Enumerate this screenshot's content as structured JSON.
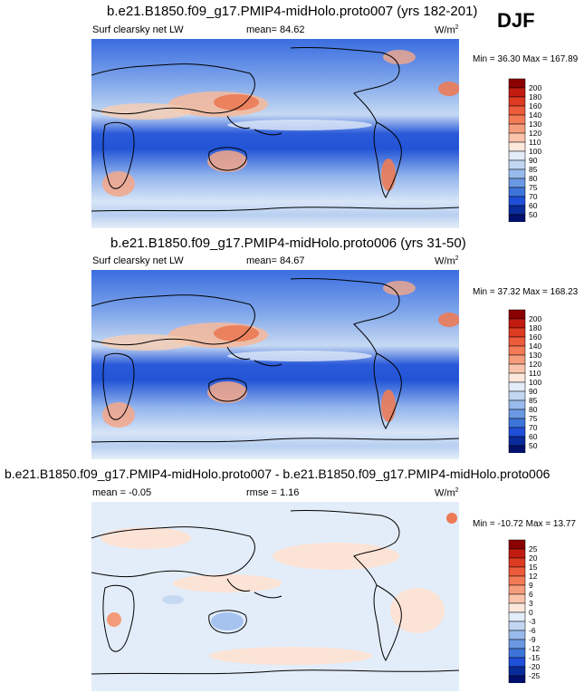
{
  "season": "DJF",
  "colors": {
    "ocean_deep": "#1f4fd8",
    "ocean_mid": "#5d8ae8",
    "ocean_light": "#a9c6f1",
    "pale": "#dde8f7",
    "warm_light": "#f7cdb2",
    "warm_mid": "#ee8a64",
    "warm_high": "#d5341f"
  },
  "chart_data": [
    {
      "type": "heatmap",
      "title": "b.e21.B1850.f09_g17.PMIP4-midHolo.proto007 (yrs 182-201)",
      "variable": "Surf clearsky net LW",
      "mean_label": "mean=",
      "mean": "84.62",
      "units": "W/m",
      "units_sup": "2",
      "minmax_text": "Min = 36.30 Max = 167.89",
      "min": 36.3,
      "max": 167.89,
      "levels": [
        "200",
        "180",
        "160",
        "140",
        "130",
        "120",
        "110",
        "100",
        "90",
        "85",
        "80",
        "75",
        "70",
        "60",
        "50"
      ],
      "level_colors": [
        "#8b0000",
        "#c21b10",
        "#dd3b22",
        "#ec5b3a",
        "#f27b56",
        "#f69d7c",
        "#fac4ac",
        "#fde8dc",
        "#e3edf9",
        "#c2d6f2",
        "#98baec",
        "#6a98e3",
        "#3d74da",
        "#1f4fd8",
        "#0a2b9a",
        "#00106b"
      ]
    },
    {
      "type": "heatmap",
      "title": "b.e21.B1850.f09_g17.PMIP4-midHolo.proto006 (yrs 31-50)",
      "variable": "Surf clearsky net LW",
      "mean_label": "mean=",
      "mean": "84.67",
      "units": "W/m",
      "units_sup": "2",
      "minmax_text": "Min = 37.32 Max = 168.23",
      "min": 37.32,
      "max": 168.23,
      "levels": [
        "200",
        "180",
        "160",
        "140",
        "130",
        "120",
        "110",
        "100",
        "90",
        "85",
        "80",
        "75",
        "70",
        "60",
        "50"
      ],
      "level_colors": [
        "#8b0000",
        "#c21b10",
        "#dd3b22",
        "#ec5b3a",
        "#f27b56",
        "#f69d7c",
        "#fac4ac",
        "#fde8dc",
        "#e3edf9",
        "#c2d6f2",
        "#98baec",
        "#6a98e3",
        "#3d74da",
        "#1f4fd8",
        "#0a2b9a",
        "#00106b"
      ]
    },
    {
      "type": "heatmap",
      "title": "b.e21.B1850.f09_g17.PMIP4-midHolo.proto007 - b.e21.B1850.f09_g17.PMIP4-midHolo.proto006",
      "mean_label": "mean =",
      "mean": "-0.05",
      "rmse_label": "rmse =",
      "rmse": "1.16",
      "units": "W/m",
      "units_sup": "2",
      "minmax_text": "Min = -10.72 Max = 13.77",
      "min": -10.72,
      "max": 13.77,
      "levels": [
        "25",
        "20",
        "15",
        "12",
        "9",
        "6",
        "3",
        "0",
        "-3",
        "-6",
        "-9",
        "-12",
        "-15",
        "-20",
        "-25"
      ],
      "level_colors": [
        "#8b0000",
        "#c21b10",
        "#dd3b22",
        "#ec5b3a",
        "#f27b56",
        "#f69d7c",
        "#fac4ac",
        "#fde8dc",
        "#e3edf9",
        "#c2d6f2",
        "#98baec",
        "#6a98e3",
        "#3d74da",
        "#1f4fd8",
        "#0a2b9a",
        "#00106b"
      ]
    }
  ]
}
